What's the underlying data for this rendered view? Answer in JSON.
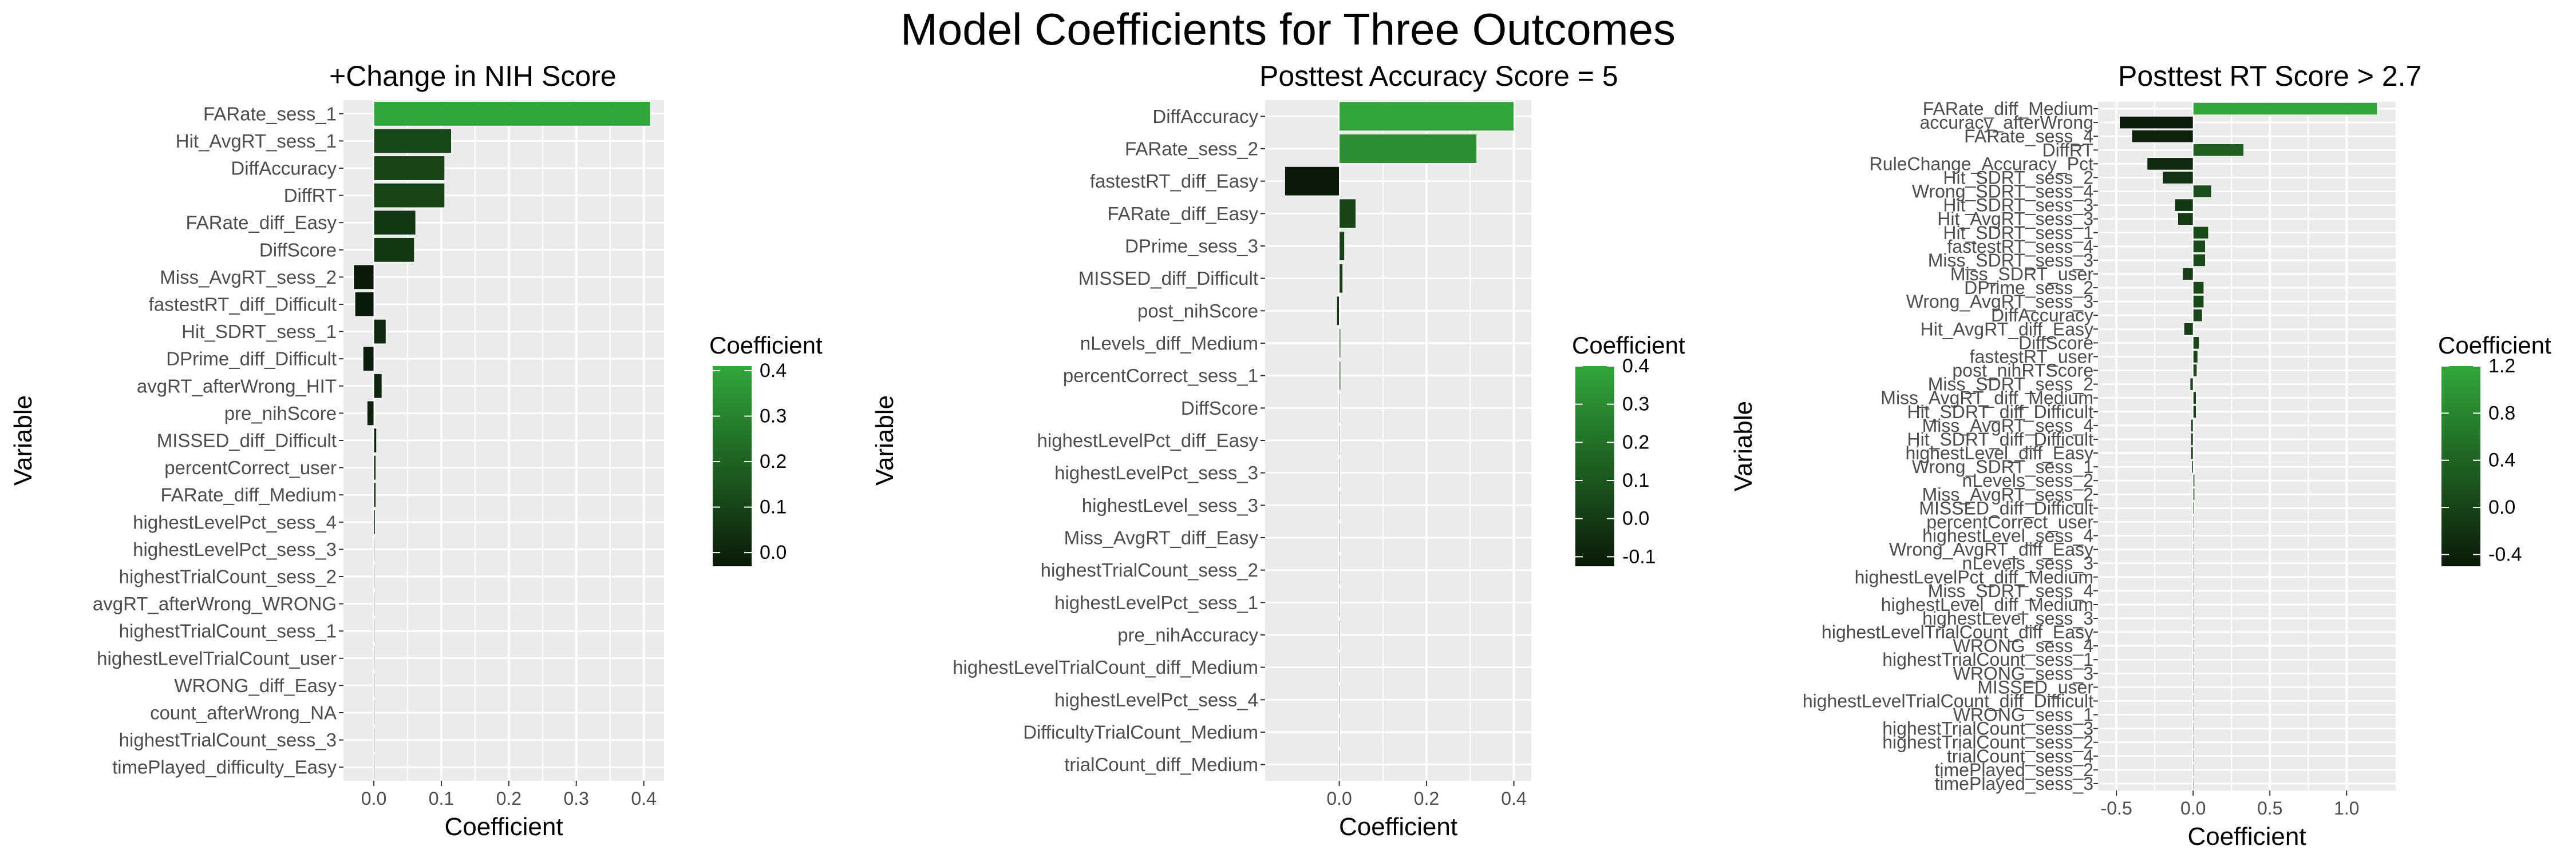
{
  "title": "Model Coefficients for Three Outcomes",
  "chart_data": [
    {
      "type": "bar",
      "orientation": "horizontal",
      "title": "+Change in NIH Score",
      "xlabel": "Coefficient",
      "ylabel": "Variable",
      "xlim": [
        -0.045,
        0.43
      ],
      "xticks": [
        0.0,
        0.1,
        0.2,
        0.3,
        0.4
      ],
      "xtick_labels": [
        "0.0",
        "0.1",
        "0.2",
        "0.3",
        "0.4"
      ],
      "categories": [
        "FARate_sess_1",
        "Hit_AvgRT_sess_1",
        "DiffAccuracy",
        "DiffRT",
        "FARate_diff_Easy",
        "DiffScore",
        "Miss_AvgRT_sess_2",
        "fastestRT_diff_Difficult",
        "Hit_SDRT_sess_1",
        "DPrime_diff_Difficult",
        "avgRT_afterWrong_HIT",
        "pre_nihScore",
        "MISSED_diff_Difficult",
        "percentCorrect_user",
        "FARate_diff_Medium",
        "highestLevelPct_sess_4",
        "highestLevelPct_sess_3",
        "highestTrialCount_sess_2",
        "avgRT_afterWrong_WRONG",
        "highestTrialCount_sess_1",
        "highestLevelTrialCount_user",
        "WRONG_diff_Easy",
        "count_afterWrong_NA",
        "highestTrialCount_sess_3",
        "timePlayed_difficulty_Easy"
      ],
      "values": [
        0.41,
        0.115,
        0.105,
        0.105,
        0.062,
        0.06,
        -0.03,
        -0.028,
        0.018,
        -0.016,
        0.012,
        -0.01,
        0.004,
        0.003,
        0.003,
        0.002,
        0.001,
        0.001,
        0,
        0,
        0,
        0,
        0,
        0,
        0
      ],
      "legend": {
        "title": "Coefficient",
        "min": -0.03,
        "max": 0.41,
        "ticks": [
          0.0,
          0.1,
          0.2,
          0.3,
          0.4
        ],
        "tick_labels": [
          "0.0",
          "0.1",
          "0.2",
          "0.3",
          "0.4"
        ],
        "low_color": "#0b1a09",
        "high_color": "#31a63a"
      }
    },
    {
      "type": "bar",
      "orientation": "horizontal",
      "title": "Posttest Accuracy Score = 5",
      "xlabel": "Coefficient",
      "ylabel": "Variable",
      "xlim": [
        -0.17,
        0.44
      ],
      "xticks": [
        0.0,
        0.2,
        0.4
      ],
      "xtick_labels": [
        "0.0",
        "0.2",
        "0.4"
      ],
      "categories": [
        "DiffAccuracy",
        "FARate_sess_2",
        "fastestRT_diff_Easy",
        "FARate_diff_Easy",
        "DPrime_sess_3",
        "MISSED_diff_Difficult",
        "post_nihScore",
        "nLevels_diff_Medium",
        "percentCorrect_sess_1",
        "DiffScore",
        "highestLevelPct_diff_Easy",
        "highestLevelPct_sess_3",
        "highestLevel_sess_3",
        "Miss_AvgRT_diff_Easy",
        "highestTrialCount_sess_2",
        "highestLevelPct_sess_1",
        "pre_nihAccuracy",
        "highestLevelTrialCount_diff_Medium",
        "highestLevelPct_sess_4",
        "DifficultyTrialCount_Medium",
        "trialCount_diff_Medium"
      ],
      "values": [
        0.4,
        0.315,
        -0.125,
        0.038,
        0.012,
        0.008,
        -0.006,
        0.003,
        0.003,
        0.002,
        0.001,
        0.001,
        0,
        0,
        0,
        0,
        0,
        0,
        0,
        0,
        0
      ],
      "legend": {
        "title": "Coefficient",
        "min": -0.125,
        "max": 0.4,
        "ticks": [
          -0.1,
          0.0,
          0.1,
          0.2,
          0.3,
          0.4
        ],
        "tick_labels": [
          "-0.1",
          "0.0",
          "0.1",
          "0.2",
          "0.3",
          "0.4"
        ],
        "low_color": "#0b1a09",
        "high_color": "#31a63a"
      }
    },
    {
      "type": "bar",
      "orientation": "horizontal",
      "title": "Posttest RT Score > 2.7",
      "xlabel": "Coefficient",
      "ylabel": "Variable",
      "xlim": [
        -0.62,
        1.32
      ],
      "xticks": [
        -0.5,
        0.0,
        0.5,
        1.0
      ],
      "xtick_labels": [
        "-0.5",
        "0.0",
        "0.5",
        "1.0"
      ],
      "categories": [
        "FARate_diff_Medium",
        "accuracy_afterWrong",
        "FARate_sess_4",
        "DiffRT",
        "RuleChange_Accuracy_Pct",
        "Hit_SDRT_sess_2",
        "Wrong_SDRT_sess_4",
        "Hit_SDRT_sess_3",
        "Hit_AvgRT_sess_3",
        "Hit_SDRT_sess_1",
        "fastestRT_sess_4",
        "Miss_SDRT_sess_3",
        "Miss_SDRT_user",
        "DPrime_sess_2",
        "Wrong_AvgRT_sess_3",
        "DiffAccuracy",
        "Hit_AvgRT_diff_Easy",
        "DiffScore",
        "fastestRT_user",
        "post_nihRTScore",
        "Miss_SDRT_sess_2",
        "Miss_AvgRT_diff_Medium",
        "Hit_SDRT_diff_Difficult",
        "Miss_AvgRT_sess_4",
        "Hit_SDRT_diff_Difficult",
        "highestLevel_diff_Easy",
        "Wrong_SDRT_sess_1",
        "nLevels_sess_2",
        "Miss_AvgRT_sess_2",
        "MISSED_diff_Difficult",
        "percentCorrect_user",
        "highestLevel_sess_4",
        "Wrong_AvgRT_diff_Easy",
        "nLevels_sess_3",
        "highestLevelPct_diff_Medium",
        "Miss_SDRT_sess_4",
        "highestLevel_diff_Medium",
        "highestLevel_sess_3",
        "highestLevelTrialCount_diff_Easy",
        "WRONG_sess_4",
        "highestTrialCount_sess_1",
        "WRONG_sess_3",
        "MISSED_user",
        "highestLevelTrialCount_diff_Difficult",
        "WRONG_sess_1",
        "highestTrialCount_sess_3",
        "highestTrialCount_sess_2",
        "trialCount_sess_4",
        "timePlayed_sess_2",
        "timePlayed_sess_3"
      ],
      "values": [
        1.2,
        -0.48,
        -0.4,
        0.33,
        -0.3,
        -0.2,
        0.12,
        -0.12,
        -0.1,
        0.1,
        0.08,
        0.08,
        -0.07,
        0.07,
        0.07,
        0.06,
        -0.06,
        0.04,
        0.03,
        0.025,
        -0.02,
        0.02,
        0.02,
        -0.015,
        -0.015,
        -0.015,
        -0.01,
        0.01,
        0.01,
        0.008,
        0.006,
        0.005,
        0.004,
        0.004,
        0.003,
        0.002,
        0.001,
        0,
        0,
        0,
        0,
        0,
        0,
        0,
        0,
        0,
        0,
        0,
        0,
        0
      ],
      "legend": {
        "title": "Coefficient",
        "min": -0.5,
        "max": 1.2,
        "ticks": [
          -0.4,
          0.0,
          0.4,
          0.8,
          1.2
        ],
        "tick_labels": [
          "-0.4",
          "0.0",
          "0.4",
          "0.8",
          "1.2"
        ],
        "low_color": "#0b1a09",
        "high_color": "#31a63a"
      }
    }
  ]
}
